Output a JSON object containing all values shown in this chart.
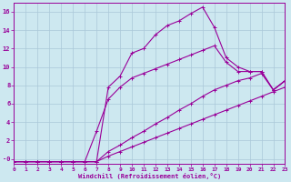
{
  "xlabel": "Windchill (Refroidissement éolien,°C)",
  "bg_color": "#cde8f0",
  "line_color": "#990099",
  "grid_color": "#aac8d8",
  "xlim": [
    0,
    23
  ],
  "ylim": [
    -0.5,
    17
  ],
  "xticks": [
    0,
    1,
    2,
    3,
    4,
    5,
    6,
    7,
    8,
    9,
    10,
    11,
    12,
    13,
    14,
    15,
    16,
    17,
    18,
    19,
    20,
    21,
    22,
    23
  ],
  "yticks": [
    0,
    2,
    4,
    6,
    8,
    10,
    12,
    14,
    16
  ],
  "lines": [
    {
      "x": [
        0,
        1,
        2,
        3,
        4,
        5,
        6,
        7,
        8,
        9,
        10,
        11,
        12,
        13,
        14,
        15,
        16,
        17,
        18,
        19,
        20,
        21,
        22,
        23
      ],
      "y": [
        -0.3,
        -0.3,
        -0.3,
        -0.3,
        -0.3,
        -0.3,
        -0.3,
        -0.3,
        7.8,
        9.0,
        11.5,
        12.0,
        13.5,
        14.5,
        15.0,
        15.8,
        16.5,
        14.3,
        11.0,
        10.0,
        9.5,
        9.5,
        7.5,
        8.5
      ]
    },
    {
      "x": [
        0,
        1,
        2,
        3,
        4,
        5,
        6,
        7,
        8,
        9,
        10,
        11,
        12,
        13,
        14,
        15,
        16,
        17,
        18,
        19,
        20,
        21,
        22,
        23
      ],
      "y": [
        -0.3,
        -0.3,
        -0.3,
        -0.3,
        -0.3,
        -0.3,
        -0.3,
        3.0,
        6.5,
        7.8,
        8.8,
        9.3,
        9.8,
        10.3,
        10.8,
        11.3,
        11.8,
        12.3,
        10.5,
        9.5,
        9.5,
        9.5,
        7.5,
        8.5
      ]
    },
    {
      "x": [
        0,
        1,
        2,
        3,
        4,
        5,
        6,
        7,
        8,
        9,
        10,
        11,
        12,
        13,
        14,
        15,
        16,
        17,
        18,
        19,
        20,
        21,
        22,
        23
      ],
      "y": [
        -0.3,
        -0.3,
        -0.3,
        -0.3,
        -0.3,
        -0.3,
        -0.3,
        -0.3,
        0.8,
        1.5,
        2.3,
        3.0,
        3.8,
        4.5,
        5.3,
        6.0,
        6.8,
        7.5,
        8.0,
        8.5,
        8.8,
        9.3,
        7.5,
        8.5
      ]
    },
    {
      "x": [
        0,
        1,
        2,
        3,
        4,
        5,
        6,
        7,
        8,
        9,
        10,
        11,
        12,
        13,
        14,
        15,
        16,
        17,
        18,
        19,
        20,
        21,
        22,
        23
      ],
      "y": [
        -0.3,
        -0.3,
        -0.3,
        -0.3,
        -0.3,
        -0.3,
        -0.3,
        -0.3,
        0.3,
        0.8,
        1.3,
        1.8,
        2.3,
        2.8,
        3.3,
        3.8,
        4.3,
        4.8,
        5.3,
        5.8,
        6.3,
        6.8,
        7.3,
        7.8
      ]
    }
  ]
}
